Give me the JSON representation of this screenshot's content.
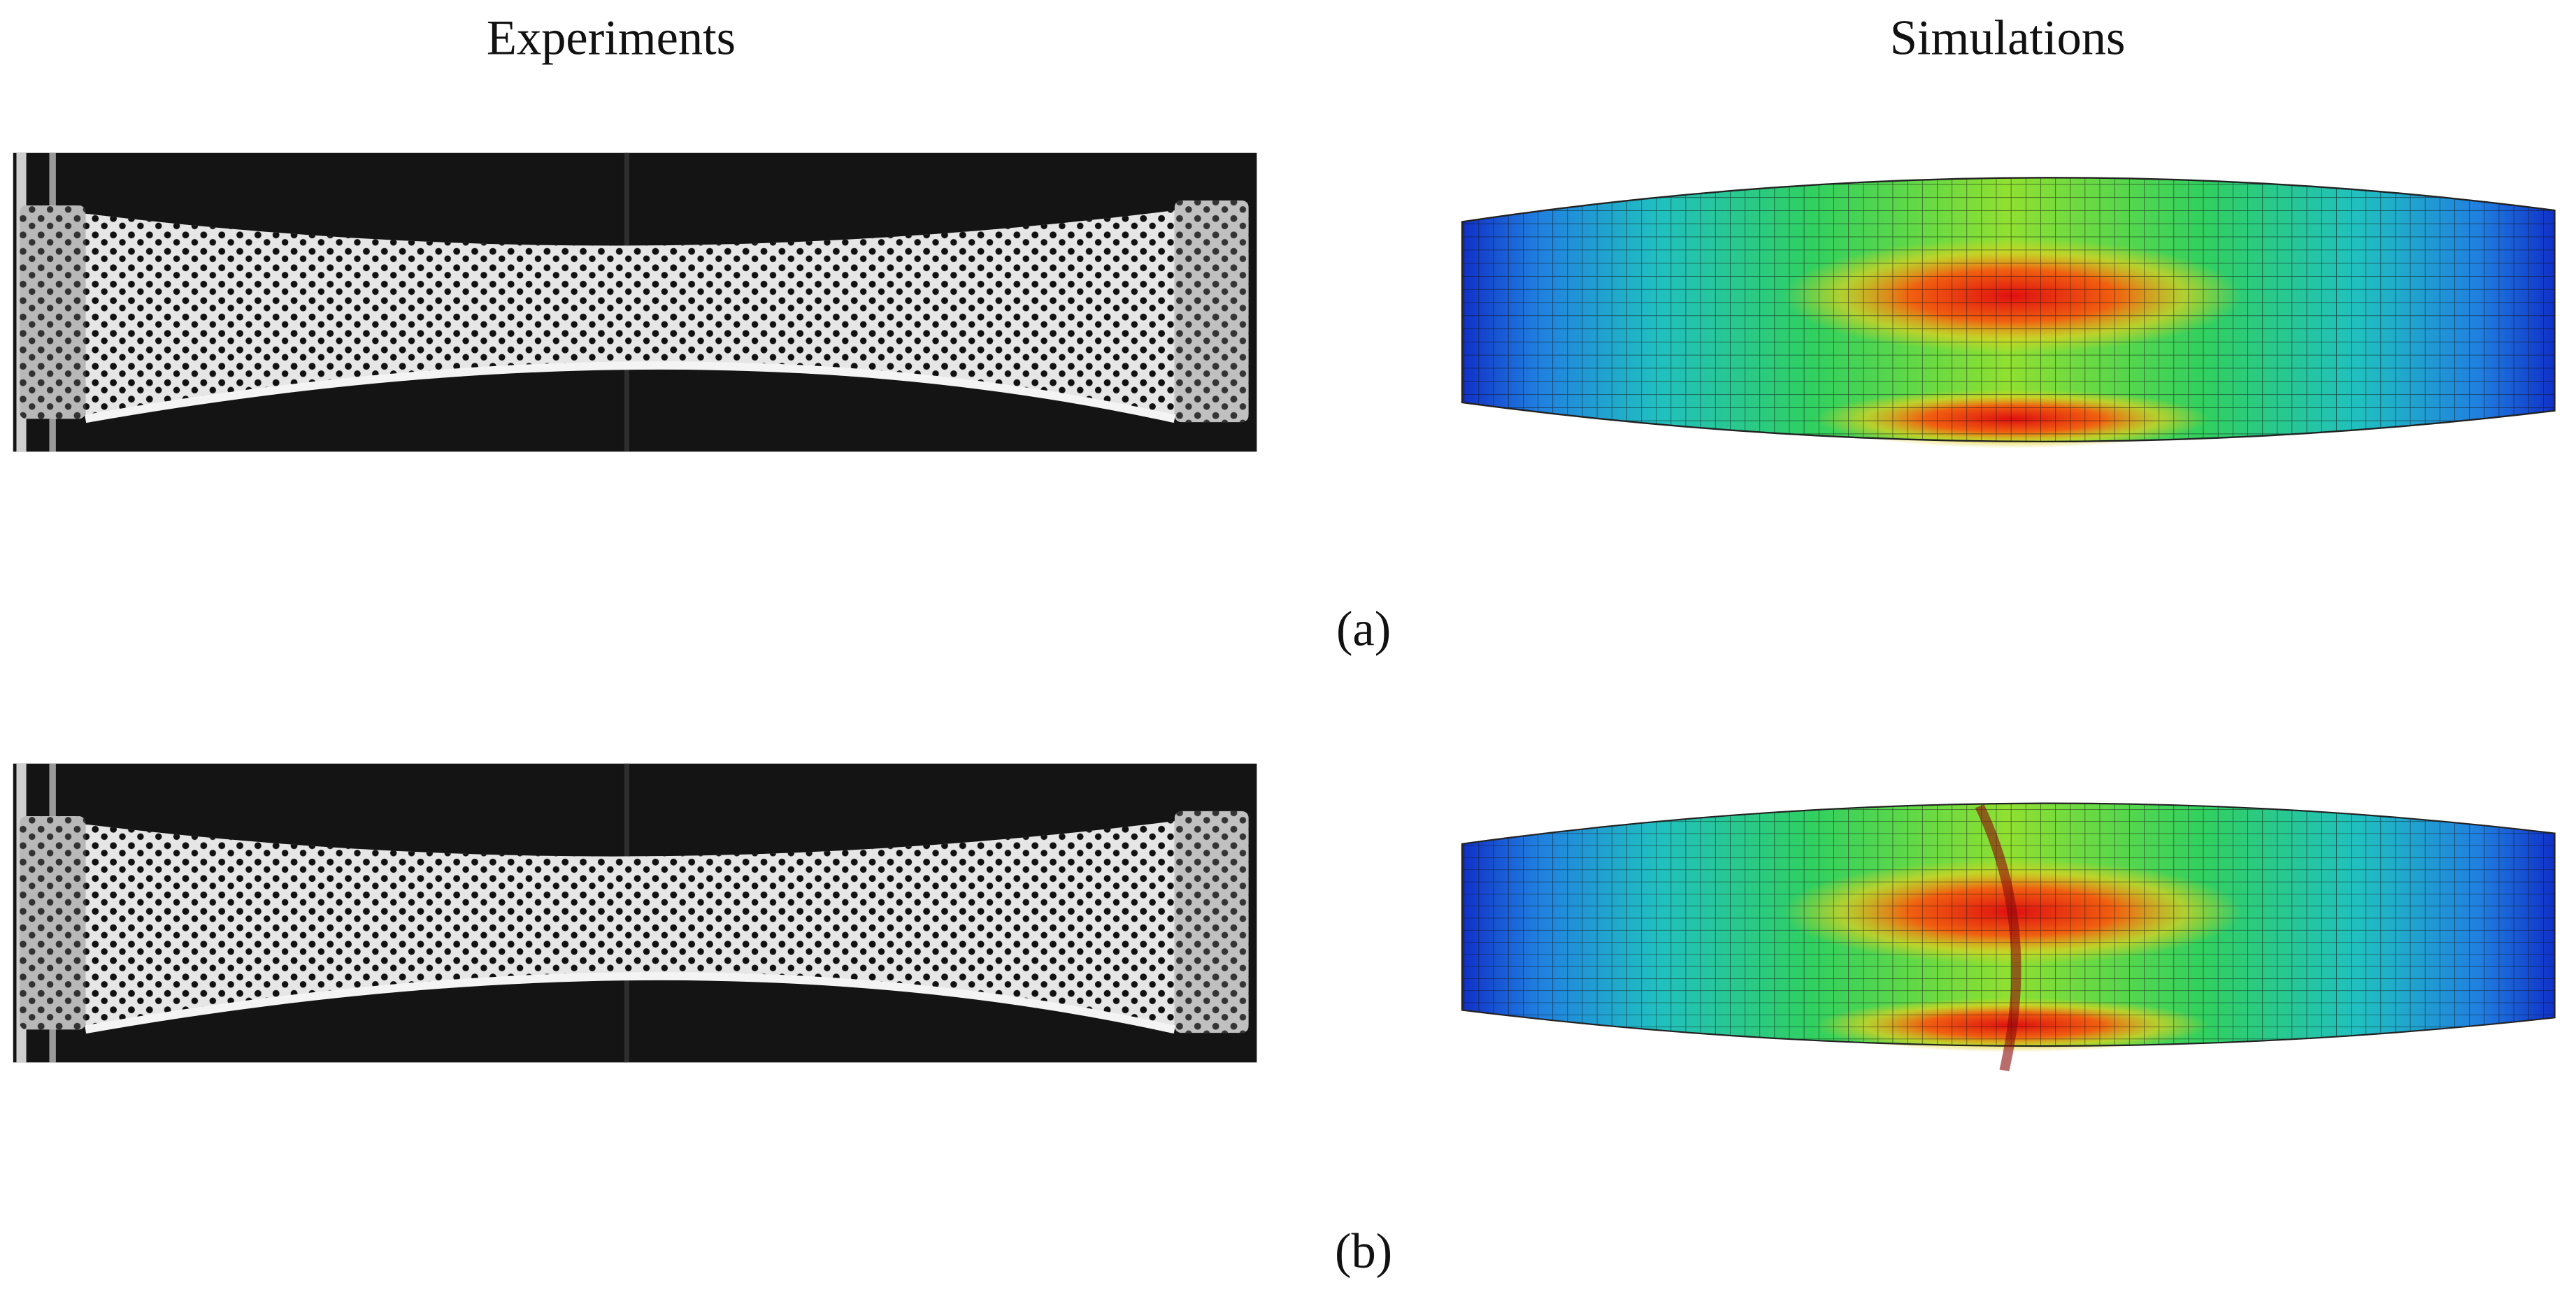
{
  "header": {
    "experiments": "Experiments",
    "simulations": "Simulations"
  },
  "panels": [
    {
      "label": "(a)"
    },
    {
      "label": "(b)"
    }
  ]
}
